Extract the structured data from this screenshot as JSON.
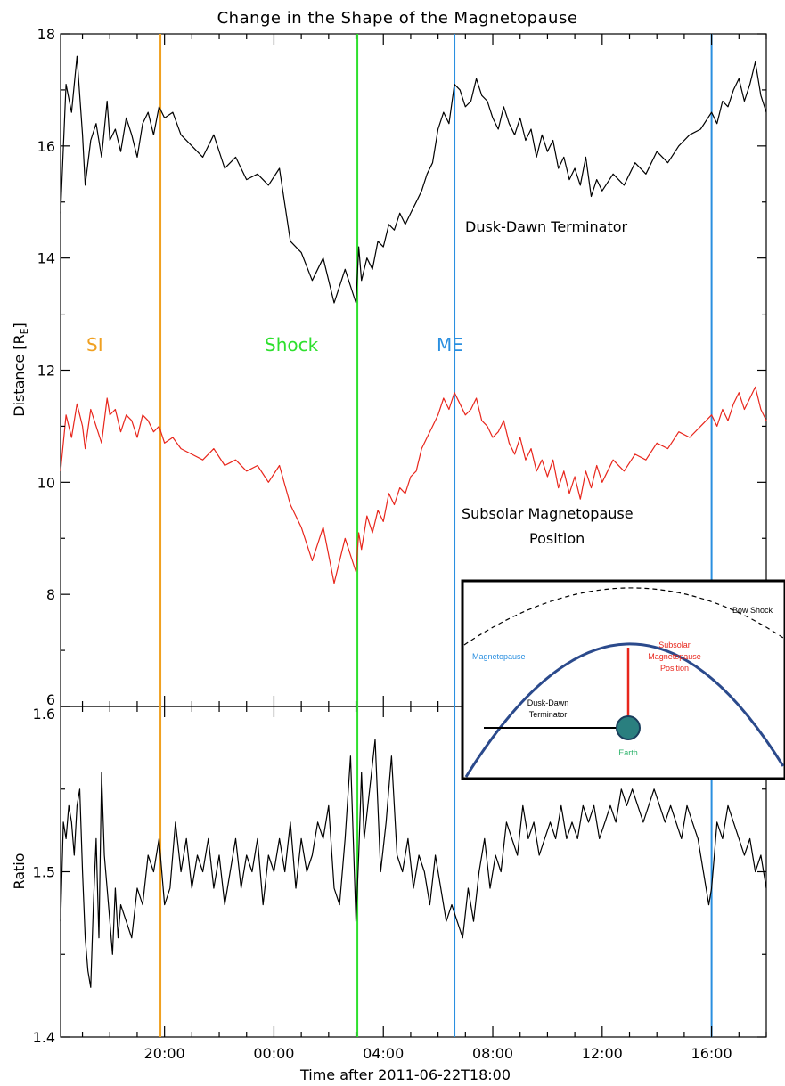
{
  "chart_data": [
    {
      "type": "line",
      "title": "Change in the Shape of the Magnetopause",
      "xlabel": "",
      "ylabel": "Distance [R",
      "ylabel_sub": "E",
      "ylabel_close": "]",
      "ylim": [
        6,
        18
      ],
      "yticks": [
        6,
        8,
        10,
        12,
        14,
        16,
        18
      ],
      "x_hours_range": [
        -1.8,
        24
      ],
      "series": [
        {
          "name": "Dusk-Dawn Terminator",
          "color": "#000000",
          "x_hours": [
            -1.8,
            -1.6,
            -1.4,
            -1.2,
            -1.0,
            -0.9,
            -0.7,
            -0.5,
            -0.3,
            -0.1,
            0.0,
            0.2,
            0.4,
            0.6,
            0.8,
            1.0,
            1.2,
            1.4,
            1.6,
            1.8,
            2.0,
            2.3,
            2.6,
            3.0,
            3.4,
            3.8,
            4.2,
            4.6,
            5.0,
            5.4,
            5.8,
            6.2,
            6.6,
            7.0,
            7.4,
            7.8,
            8.2,
            8.6,
            9.0,
            9.1,
            9.2,
            9.4,
            9.6,
            9.8,
            10.0,
            10.2,
            10.4,
            10.6,
            10.8,
            11.0,
            11.2,
            11.4,
            11.6,
            11.8,
            12.0,
            12.2,
            12.4,
            12.6,
            12.8,
            13.0,
            13.2,
            13.4,
            13.6,
            13.8,
            14.0,
            14.2,
            14.4,
            14.6,
            14.8,
            15.0,
            15.2,
            15.4,
            15.6,
            15.8,
            16.0,
            16.2,
            16.4,
            16.6,
            16.8,
            17.0,
            17.2,
            17.4,
            17.6,
            17.8,
            18.0,
            18.4,
            18.8,
            19.2,
            19.6,
            20.0,
            20.4,
            20.8,
            21.2,
            21.6,
            22.0,
            22.2,
            22.4,
            22.6,
            22.8,
            23.0,
            23.2,
            23.4,
            23.6,
            23.8,
            24.0
          ],
          "values": [
            14.8,
            17.1,
            16.6,
            17.6,
            16.2,
            15.3,
            16.1,
            16.4,
            15.8,
            16.8,
            16.1,
            16.3,
            15.9,
            16.5,
            16.2,
            15.8,
            16.4,
            16.6,
            16.2,
            16.7,
            16.5,
            16.6,
            16.2,
            16.0,
            15.8,
            16.2,
            15.6,
            15.8,
            15.4,
            15.5,
            15.3,
            15.6,
            14.3,
            14.1,
            13.6,
            14.0,
            13.2,
            13.8,
            13.2,
            14.2,
            13.6,
            14.0,
            13.8,
            14.3,
            14.2,
            14.6,
            14.5,
            14.8,
            14.6,
            14.8,
            15.0,
            15.2,
            15.5,
            15.7,
            16.3,
            16.6,
            16.4,
            17.1,
            17.0,
            16.7,
            16.8,
            17.2,
            16.9,
            16.8,
            16.5,
            16.3,
            16.7,
            16.4,
            16.2,
            16.5,
            16.1,
            16.3,
            15.8,
            16.2,
            15.9,
            16.1,
            15.6,
            15.8,
            15.4,
            15.6,
            15.3,
            15.8,
            15.1,
            15.4,
            15.2,
            15.5,
            15.3,
            15.7,
            15.5,
            15.9,
            15.7,
            16.0,
            16.2,
            16.3,
            16.6,
            16.4,
            16.8,
            16.7,
            17.0,
            17.2,
            16.8,
            17.1,
            17.5,
            16.9,
            16.6
          ]
        },
        {
          "name": "Subsolar Magnetopause Position",
          "color": "#e8261c",
          "x_hours": [
            -1.8,
            -1.6,
            -1.4,
            -1.2,
            -1.0,
            -0.9,
            -0.7,
            -0.5,
            -0.3,
            -0.1,
            0.0,
            0.2,
            0.4,
            0.6,
            0.8,
            1.0,
            1.2,
            1.4,
            1.6,
            1.8,
            2.0,
            2.3,
            2.6,
            3.0,
            3.4,
            3.8,
            4.2,
            4.6,
            5.0,
            5.4,
            5.8,
            6.2,
            6.6,
            7.0,
            7.4,
            7.8,
            8.2,
            8.6,
            9.0,
            9.1,
            9.2,
            9.4,
            9.6,
            9.8,
            10.0,
            10.2,
            10.4,
            10.6,
            10.8,
            11.0,
            11.2,
            11.4,
            11.6,
            11.8,
            12.0,
            12.2,
            12.4,
            12.6,
            12.8,
            13.0,
            13.2,
            13.4,
            13.6,
            13.8,
            14.0,
            14.2,
            14.4,
            14.6,
            14.8,
            15.0,
            15.2,
            15.4,
            15.6,
            15.8,
            16.0,
            16.2,
            16.4,
            16.6,
            16.8,
            17.0,
            17.2,
            17.4,
            17.6,
            17.8,
            18.0,
            18.4,
            18.8,
            19.2,
            19.6,
            20.0,
            20.4,
            20.8,
            21.2,
            21.6,
            22.0,
            22.2,
            22.4,
            22.6,
            22.8,
            23.0,
            23.2,
            23.4,
            23.6,
            23.8,
            24.0
          ],
          "values": [
            10.2,
            11.2,
            10.8,
            11.4,
            11.0,
            10.6,
            11.3,
            11.0,
            10.7,
            11.5,
            11.2,
            11.3,
            10.9,
            11.2,
            11.1,
            10.8,
            11.2,
            11.1,
            10.9,
            11.0,
            10.7,
            10.8,
            10.6,
            10.5,
            10.4,
            10.6,
            10.3,
            10.4,
            10.2,
            10.3,
            10.0,
            10.3,
            9.6,
            9.2,
            8.6,
            9.2,
            8.2,
            9.0,
            8.4,
            9.1,
            8.8,
            9.4,
            9.1,
            9.5,
            9.3,
            9.8,
            9.6,
            9.9,
            9.8,
            10.1,
            10.2,
            10.6,
            10.8,
            11.0,
            11.2,
            11.5,
            11.3,
            11.6,
            11.4,
            11.2,
            11.3,
            11.5,
            11.1,
            11.0,
            10.8,
            10.9,
            11.1,
            10.7,
            10.5,
            10.8,
            10.4,
            10.6,
            10.2,
            10.4,
            10.1,
            10.4,
            9.9,
            10.2,
            9.8,
            10.1,
            9.7,
            10.2,
            9.9,
            10.3,
            10.0,
            10.4,
            10.2,
            10.5,
            10.4,
            10.7,
            10.6,
            10.9,
            10.8,
            11.0,
            11.2,
            11.0,
            11.3,
            11.1,
            11.4,
            11.6,
            11.3,
            11.5,
            11.7,
            11.3,
            11.1
          ]
        }
      ],
      "annotations": [
        {
          "text": "SI",
          "color": "#f0a020"
        },
        {
          "text": "Shock",
          "color": "#2ee02e"
        },
        {
          "text": "ME",
          "color": "#2a8fe0"
        },
        {
          "text": "Dusk-Dawn Terminator",
          "color": "#000000"
        },
        {
          "text": "Subsolar Magnetopause",
          "color": "#e8261c"
        },
        {
          "text": "Position",
          "color": "#e8261c"
        }
      ]
    },
    {
      "type": "line",
      "xlabel": "Time after 2011-06-22T18:00",
      "ylabel": "Ratio",
      "ylim": [
        1.4,
        1.6
      ],
      "yticks": [
        1.4,
        1.5,
        1.6
      ],
      "yticklabels": [
        "1.4",
        "1.5",
        "1.6"
      ],
      "xticks_hours": [
        2,
        6,
        10,
        14,
        18,
        22
      ],
      "xticklabels": [
        "20:00",
        "00:00",
        "04:00",
        "08:00",
        "12:00",
        "16:00"
      ],
      "series": [
        {
          "name": "",
          "color": "#000000",
          "x_hours": [
            -1.8,
            -1.7,
            -1.6,
            -1.5,
            -1.4,
            -1.3,
            -1.2,
            -1.1,
            -1.0,
            -0.9,
            -0.8,
            -0.7,
            -0.6,
            -0.5,
            -0.4,
            -0.3,
            -0.2,
            -0.1,
            0.0,
            0.1,
            0.2,
            0.3,
            0.4,
            0.6,
            0.8,
            1.0,
            1.2,
            1.4,
            1.6,
            1.8,
            2.0,
            2.2,
            2.4,
            2.6,
            2.8,
            3.0,
            3.2,
            3.4,
            3.6,
            3.8,
            4.0,
            4.2,
            4.4,
            4.6,
            4.8,
            5.0,
            5.2,
            5.4,
            5.6,
            5.8,
            6.0,
            6.2,
            6.4,
            6.6,
            6.8,
            7.0,
            7.2,
            7.4,
            7.6,
            7.8,
            8.0,
            8.2,
            8.4,
            8.6,
            8.8,
            9.0,
            9.1,
            9.2,
            9.3,
            9.5,
            9.7,
            9.9,
            10.1,
            10.3,
            10.5,
            10.7,
            10.9,
            11.1,
            11.3,
            11.5,
            11.7,
            11.9,
            12.1,
            12.3,
            12.5,
            12.7,
            12.9,
            13.1,
            13.3,
            13.5,
            13.7,
            13.9,
            14.1,
            14.3,
            14.5,
            14.7,
            14.9,
            15.1,
            15.3,
            15.5,
            15.7,
            15.9,
            16.1,
            16.3,
            16.5,
            16.7,
            16.9,
            17.1,
            17.3,
            17.5,
            17.7,
            17.9,
            18.1,
            18.3,
            18.5,
            18.7,
            18.9,
            19.1,
            19.3,
            19.5,
            19.7,
            19.9,
            20.1,
            20.3,
            20.5,
            20.7,
            20.9,
            21.1,
            21.3,
            21.5,
            21.7,
            21.9,
            22.0,
            22.1,
            22.2,
            22.4,
            22.6,
            22.8,
            23.0,
            23.2,
            23.4,
            23.6,
            23.8,
            24.0
          ],
          "values": [
            1.47,
            1.53,
            1.52,
            1.54,
            1.53,
            1.51,
            1.54,
            1.55,
            1.5,
            1.46,
            1.44,
            1.43,
            1.48,
            1.52,
            1.46,
            1.56,
            1.51,
            1.49,
            1.47,
            1.45,
            1.49,
            1.46,
            1.48,
            1.47,
            1.46,
            1.49,
            1.48,
            1.51,
            1.5,
            1.52,
            1.48,
            1.49,
            1.53,
            1.5,
            1.52,
            1.49,
            1.51,
            1.5,
            1.52,
            1.49,
            1.51,
            1.48,
            1.5,
            1.52,
            1.49,
            1.51,
            1.5,
            1.52,
            1.48,
            1.51,
            1.5,
            1.52,
            1.5,
            1.53,
            1.49,
            1.52,
            1.5,
            1.51,
            1.53,
            1.52,
            1.54,
            1.49,
            1.48,
            1.52,
            1.57,
            1.47,
            1.51,
            1.56,
            1.52,
            1.55,
            1.58,
            1.5,
            1.53,
            1.57,
            1.51,
            1.5,
            1.52,
            1.49,
            1.51,
            1.5,
            1.48,
            1.51,
            1.49,
            1.47,
            1.48,
            1.47,
            1.46,
            1.49,
            1.47,
            1.5,
            1.52,
            1.49,
            1.51,
            1.5,
            1.53,
            1.52,
            1.51,
            1.54,
            1.52,
            1.53,
            1.51,
            1.52,
            1.53,
            1.52,
            1.54,
            1.52,
            1.53,
            1.52,
            1.54,
            1.53,
            1.54,
            1.52,
            1.53,
            1.54,
            1.53,
            1.55,
            1.54,
            1.55,
            1.54,
            1.53,
            1.54,
            1.55,
            1.54,
            1.53,
            1.54,
            1.53,
            1.52,
            1.54,
            1.53,
            1.52,
            1.5,
            1.48,
            1.49,
            1.51,
            1.53,
            1.52,
            1.54,
            1.53,
            1.52,
            1.51,
            1.52,
            1.5,
            1.51,
            1.49
          ]
        }
      ]
    }
  ],
  "event_lines": [
    {
      "name": "SI",
      "x_hours": 1.85,
      "color": "#f0a020"
    },
    {
      "name": "Shock",
      "x_hours": 9.05,
      "color": "#2ee02e"
    },
    {
      "name": "ME",
      "x_hours": 12.6,
      "color": "#2a8fe0"
    },
    {
      "name": "ME-end",
      "x_hours": 22.0,
      "color": "#2a8fe0"
    }
  ],
  "inset": {
    "bow_shock_label": "Bow Shock",
    "magnetopause_label": "Magnetopause",
    "subsolar_label_1": "Subsolar",
    "subsolar_label_2": "Magnetopause",
    "subsolar_label_3": "Position",
    "terminator_label_1": "Dusk-Dawn",
    "terminator_label_2": "Terminator",
    "earth_label": "Earth",
    "colors": {
      "magnetopause": "#2b4a8c",
      "magnetopause_label": "#2a8fe0",
      "subsolar": "#e8261c",
      "earth_fill": "#2a7f7f",
      "earth_label": "#2db36b"
    }
  }
}
